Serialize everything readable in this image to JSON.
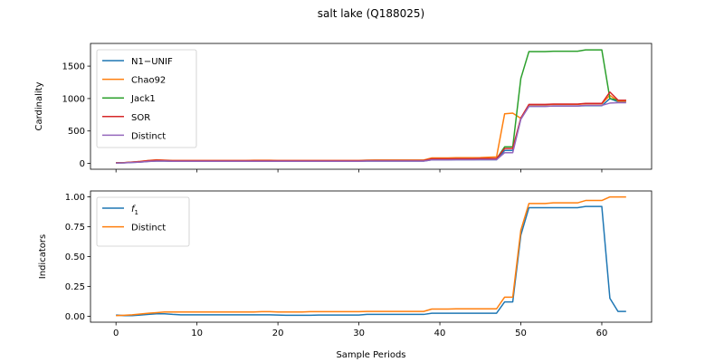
{
  "figure": {
    "title": "salt lake (Q188025)"
  },
  "chart_data": [
    {
      "type": "line",
      "ylabel": "Cardinality",
      "xlabel": "",
      "xlim": [
        -3.15,
        66.15
      ],
      "ylim": [
        -90,
        1850
      ],
      "xticks": [
        0,
        10,
        20,
        30,
        40,
        50,
        60
      ],
      "yticks": [
        0,
        500,
        1000,
        1500
      ],
      "ytick_labels": [
        "0",
        "500",
        "1000",
        "1500"
      ],
      "grid": false,
      "legend_placement": "upper-left",
      "series": [
        {
          "name": "N1−UNIF",
          "color": "#1f77b4",
          "x": [
            0,
            1,
            2,
            3,
            4,
            5,
            6,
            7,
            8,
            9,
            10,
            11,
            12,
            13,
            14,
            15,
            16,
            17,
            18,
            19,
            20,
            21,
            22,
            23,
            24,
            25,
            26,
            27,
            28,
            29,
            30,
            31,
            32,
            33,
            34,
            35,
            36,
            37,
            38,
            39,
            40,
            41,
            42,
            43,
            44,
            45,
            46,
            47,
            48,
            49,
            50,
            51,
            52,
            53,
            54,
            55,
            56,
            57,
            58,
            59,
            60,
            61,
            62,
            63
          ],
          "y": [
            10,
            10,
            15,
            20,
            30,
            35,
            35,
            32,
            32,
            32,
            32,
            32,
            32,
            32,
            32,
            32,
            32,
            32,
            32,
            32,
            32,
            32,
            32,
            32,
            32,
            33,
            33,
            33,
            34,
            34,
            34,
            35,
            35,
            35,
            35,
            35,
            36,
            36,
            36,
            55,
            55,
            55,
            56,
            56,
            56,
            57,
            57,
            57,
            200,
            200,
            690,
            880,
            880,
            880,
            885,
            885,
            885,
            885,
            890,
            890,
            890,
            1000,
            950,
            950
          ]
        },
        {
          "name": "Chao92",
          "color": "#ff7f0e",
          "x": [
            0,
            1,
            2,
            3,
            4,
            5,
            6,
            7,
            8,
            9,
            10,
            11,
            12,
            13,
            14,
            15,
            16,
            17,
            18,
            19,
            20,
            21,
            22,
            23,
            24,
            25,
            26,
            27,
            28,
            29,
            30,
            31,
            32,
            33,
            34,
            35,
            36,
            37,
            38,
            39,
            40,
            41,
            42,
            43,
            44,
            45,
            46,
            47,
            48,
            49,
            50,
            51,
            52,
            53,
            54,
            55,
            56,
            57,
            58,
            59,
            60,
            61,
            62,
            63
          ],
          "y": [
            10,
            12,
            20,
            30,
            45,
            55,
            50,
            45,
            45,
            45,
            45,
            45,
            45,
            45,
            45,
            45,
            45,
            48,
            48,
            48,
            45,
            45,
            45,
            45,
            45,
            45,
            45,
            45,
            45,
            45,
            45,
            50,
            52,
            52,
            52,
            52,
            52,
            52,
            52,
            85,
            85,
            85,
            88,
            88,
            88,
            90,
            95,
            100,
            765,
            775,
            695,
            905,
            905,
            905,
            910,
            910,
            910,
            910,
            920,
            920,
            920,
            1050,
            960,
            960
          ]
        },
        {
          "name": "Jack1",
          "color": "#2ca02c",
          "x": [
            0,
            1,
            2,
            3,
            4,
            5,
            6,
            7,
            8,
            9,
            10,
            11,
            12,
            13,
            14,
            15,
            16,
            17,
            18,
            19,
            20,
            21,
            22,
            23,
            24,
            25,
            26,
            27,
            28,
            29,
            30,
            31,
            32,
            33,
            34,
            35,
            36,
            37,
            38,
            39,
            40,
            41,
            42,
            43,
            44,
            45,
            46,
            47,
            48,
            49,
            50,
            51,
            52,
            53,
            54,
            55,
            56,
            57,
            58,
            59,
            60,
            61,
            62,
            63
          ],
          "y": [
            10,
            10,
            18,
            25,
            38,
            45,
            42,
            40,
            40,
            40,
            40,
            40,
            40,
            40,
            40,
            40,
            40,
            40,
            40,
            40,
            40,
            40,
            40,
            40,
            40,
            40,
            40,
            40,
            40,
            40,
            40,
            42,
            42,
            42,
            42,
            42,
            42,
            42,
            42,
            65,
            65,
            65,
            68,
            68,
            68,
            70,
            70,
            70,
            255,
            255,
            1310,
            1725,
            1725,
            1725,
            1730,
            1730,
            1730,
            1730,
            1750,
            1750,
            1750,
            1000,
            975,
            975
          ]
        },
        {
          "name": "SOR",
          "color": "#d62728",
          "x": [
            0,
            1,
            2,
            3,
            4,
            5,
            6,
            7,
            8,
            9,
            10,
            11,
            12,
            13,
            14,
            15,
            16,
            17,
            18,
            19,
            20,
            21,
            22,
            23,
            24,
            25,
            26,
            27,
            28,
            29,
            30,
            31,
            32,
            33,
            34,
            35,
            36,
            37,
            38,
            39,
            40,
            41,
            42,
            43,
            44,
            45,
            46,
            47,
            48,
            49,
            50,
            51,
            52,
            53,
            54,
            55,
            56,
            57,
            58,
            59,
            60,
            61,
            62,
            63
          ],
          "y": [
            10,
            12,
            20,
            28,
            42,
            50,
            46,
            42,
            42,
            42,
            42,
            42,
            42,
            42,
            42,
            42,
            42,
            42,
            42,
            42,
            42,
            42,
            42,
            42,
            42,
            42,
            42,
            42,
            42,
            42,
            42,
            45,
            45,
            45,
            45,
            45,
            45,
            45,
            45,
            70,
            70,
            70,
            72,
            72,
            72,
            75,
            75,
            75,
            230,
            230,
            700,
            910,
            910,
            910,
            915,
            915,
            915,
            915,
            925,
            925,
            925,
            1100,
            975,
            975
          ]
        },
        {
          "name": "Distinct",
          "color": "#9467bd",
          "x": [
            0,
            1,
            2,
            3,
            4,
            5,
            6,
            7,
            8,
            9,
            10,
            11,
            12,
            13,
            14,
            15,
            16,
            17,
            18,
            19,
            20,
            21,
            22,
            23,
            24,
            25,
            26,
            27,
            28,
            29,
            30,
            31,
            32,
            33,
            34,
            35,
            36,
            37,
            38,
            39,
            40,
            41,
            42,
            43,
            44,
            45,
            46,
            47,
            48,
            49,
            50,
            51,
            52,
            53,
            54,
            55,
            56,
            57,
            58,
            59,
            60,
            61,
            62,
            63
          ],
          "y": [
            5,
            8,
            15,
            20,
            30,
            35,
            35,
            32,
            32,
            32,
            32,
            32,
            32,
            32,
            32,
            32,
            32,
            32,
            32,
            32,
            32,
            32,
            32,
            32,
            32,
            32,
            32,
            32,
            32,
            32,
            32,
            35,
            35,
            35,
            35,
            35,
            35,
            35,
            35,
            55,
            55,
            55,
            57,
            57,
            57,
            58,
            58,
            58,
            165,
            165,
            680,
            880,
            880,
            880,
            885,
            885,
            885,
            885,
            895,
            895,
            895,
            930,
            935,
            935
          ]
        }
      ]
    },
    {
      "type": "line",
      "ylabel": "Indicators",
      "xlabel": "Sample Periods",
      "xlim": [
        -3.15,
        66.15
      ],
      "ylim": [
        -0.05,
        1.05
      ],
      "xticks": [
        0,
        10,
        20,
        30,
        40,
        50,
        60
      ],
      "xtick_labels": [
        "0",
        "10",
        "20",
        "30",
        "40",
        "50",
        "60"
      ],
      "yticks": [
        0,
        0.25,
        0.5,
        0.75,
        1.0
      ],
      "ytick_labels": [
        "0.00",
        "0.25",
        "0.50",
        "0.75",
        "1.00"
      ],
      "grid": false,
      "legend_placement": "upper-left",
      "series": [
        {
          "name": "f",
          "name_subscript": "1",
          "color": "#1f77b4",
          "x": [
            0,
            1,
            2,
            3,
            4,
            5,
            6,
            7,
            8,
            9,
            10,
            11,
            12,
            13,
            14,
            15,
            16,
            17,
            18,
            19,
            20,
            21,
            22,
            23,
            24,
            25,
            26,
            27,
            28,
            29,
            30,
            31,
            32,
            33,
            34,
            35,
            36,
            37,
            38,
            39,
            40,
            41,
            42,
            43,
            44,
            45,
            46,
            47,
            48,
            49,
            50,
            51,
            52,
            53,
            54,
            55,
            56,
            57,
            58,
            59,
            60,
            61,
            62,
            63
          ],
          "y": [
            0.01,
            0.005,
            0.005,
            0.01,
            0.015,
            0.02,
            0.02,
            0.015,
            0.012,
            0.012,
            0.012,
            0.012,
            0.012,
            0.012,
            0.012,
            0.012,
            0.012,
            0.012,
            0.012,
            0.012,
            0.01,
            0.008,
            0.008,
            0.008,
            0.008,
            0.01,
            0.01,
            0.01,
            0.01,
            0.01,
            0.01,
            0.015,
            0.015,
            0.015,
            0.015,
            0.015,
            0.015,
            0.015,
            0.015,
            0.025,
            0.025,
            0.025,
            0.025,
            0.025,
            0.025,
            0.025,
            0.025,
            0.025,
            0.12,
            0.12,
            0.68,
            0.91,
            0.91,
            0.91,
            0.91,
            0.91,
            0.91,
            0.91,
            0.92,
            0.92,
            0.92,
            0.15,
            0.04,
            0.04
          ]
        },
        {
          "name": "Distinct",
          "color": "#ff7f0e",
          "x": [
            0,
            1,
            2,
            3,
            4,
            5,
            6,
            7,
            8,
            9,
            10,
            11,
            12,
            13,
            14,
            15,
            16,
            17,
            18,
            19,
            20,
            21,
            22,
            23,
            24,
            25,
            26,
            27,
            28,
            29,
            30,
            31,
            32,
            33,
            34,
            35,
            36,
            37,
            38,
            39,
            40,
            41,
            42,
            43,
            44,
            45,
            46,
            47,
            48,
            49,
            50,
            51,
            52,
            53,
            54,
            55,
            56,
            57,
            58,
            59,
            60,
            61,
            62,
            63
          ],
          "y": [
            0.005,
            0.008,
            0.012,
            0.018,
            0.025,
            0.03,
            0.035,
            0.035,
            0.035,
            0.035,
            0.035,
            0.035,
            0.035,
            0.035,
            0.035,
            0.035,
            0.035,
            0.035,
            0.038,
            0.038,
            0.035,
            0.035,
            0.035,
            0.035,
            0.038,
            0.038,
            0.038,
            0.038,
            0.038,
            0.038,
            0.038,
            0.04,
            0.04,
            0.04,
            0.04,
            0.04,
            0.04,
            0.04,
            0.04,
            0.06,
            0.06,
            0.06,
            0.062,
            0.062,
            0.062,
            0.062,
            0.062,
            0.062,
            0.16,
            0.16,
            0.72,
            0.945,
            0.945,
            0.945,
            0.95,
            0.95,
            0.95,
            0.95,
            0.97,
            0.97,
            0.97,
            1.0,
            1.0,
            1.0
          ]
        }
      ]
    }
  ]
}
